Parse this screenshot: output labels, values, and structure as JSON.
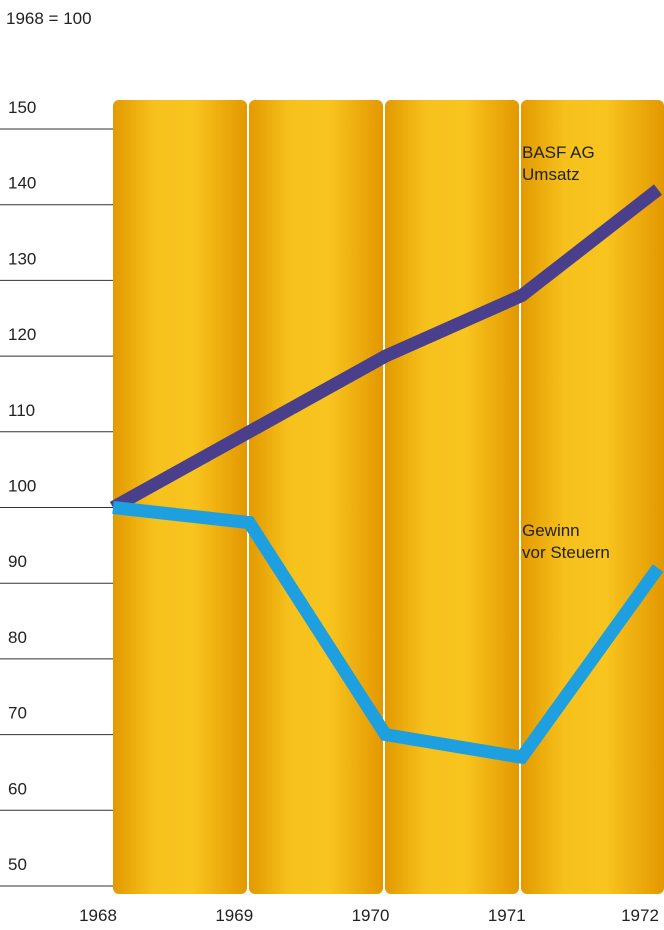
{
  "chart_data": {
    "type": "line",
    "title": "1968 = 100",
    "categories": [
      "1968",
      "1969",
      "1970",
      "1971",
      "1972"
    ],
    "series": [
      {
        "label": [
          "BASF AG",
          "Umsatz"
        ],
        "color": "#4a3f8c",
        "values": [
          100,
          110,
          120,
          128,
          142
        ]
      },
      {
        "label": [
          "Gewinn",
          "vor Steuern"
        ],
        "color": "#1e9fe0",
        "values": [
          100,
          98,
          70,
          67,
          92
        ]
      }
    ],
    "ylim": [
      50,
      150
    ],
    "yticks": [
      50,
      60,
      70,
      80,
      90,
      100,
      110,
      120,
      130,
      140,
      150
    ]
  }
}
